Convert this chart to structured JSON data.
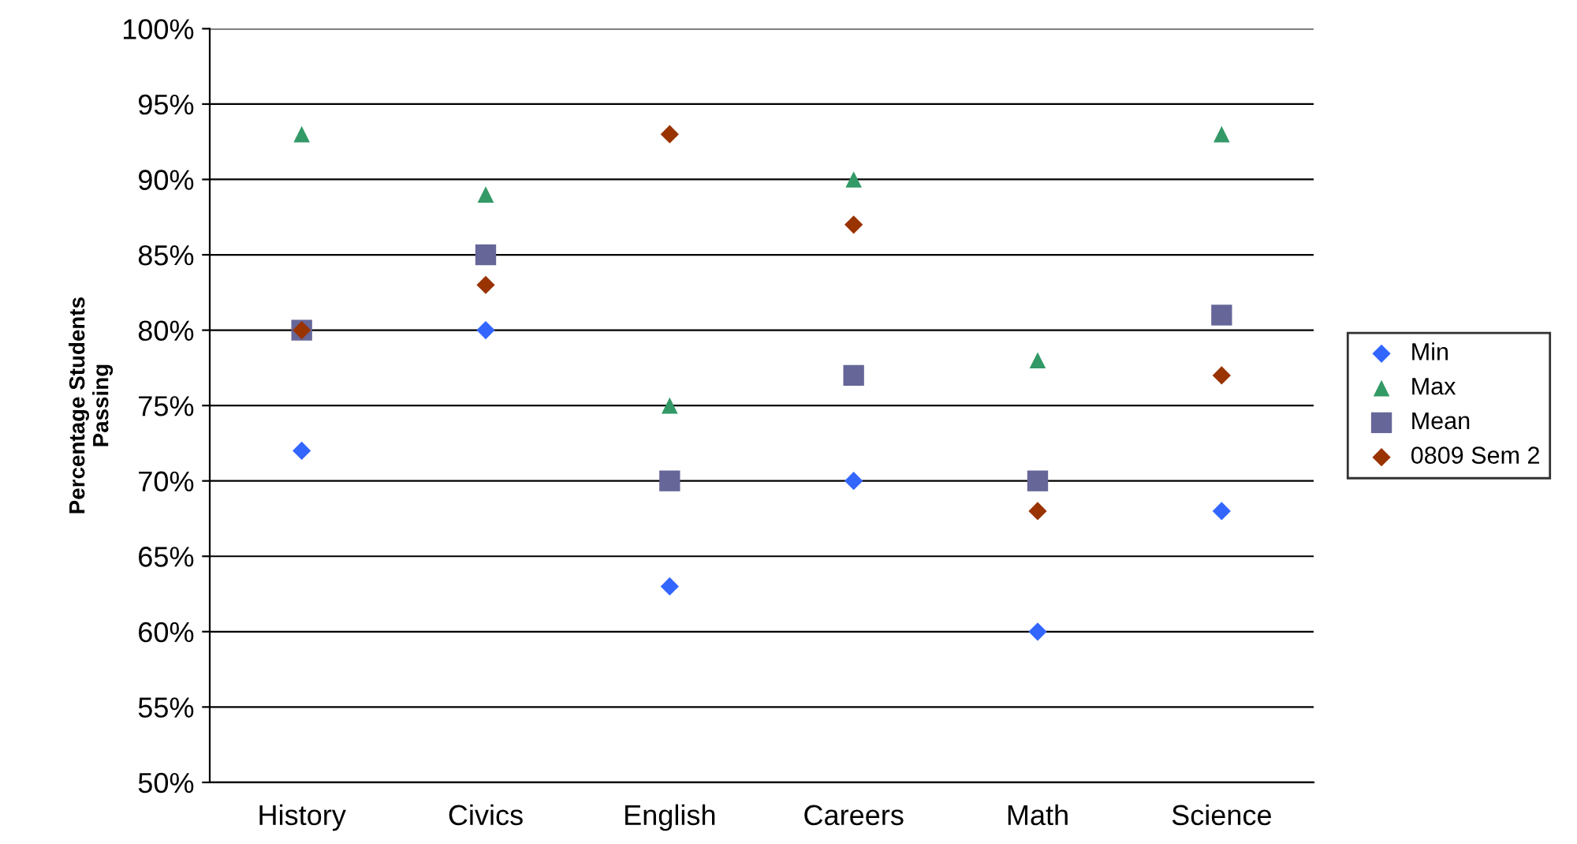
{
  "chart_data": {
    "type": "scatter",
    "ylabel": "Percentage Students\nPassing",
    "categories": [
      "History",
      "Civics",
      "English",
      "Careers",
      "Math",
      "Science"
    ],
    "series": [
      {
        "name": "Min",
        "color": "#3366ff",
        "marker": "diamond",
        "values": [
          72,
          80,
          63,
          70,
          60,
          68
        ]
      },
      {
        "name": "Max",
        "color": "#339966",
        "marker": "triangle",
        "values": [
          93,
          89,
          75,
          90,
          78,
          93
        ]
      },
      {
        "name": "Mean",
        "color": "#666699",
        "marker": "square",
        "values": [
          80,
          85,
          70,
          77,
          70,
          81
        ]
      },
      {
        "name": "0809 Sem 2",
        "color": "#993300",
        "marker": "diamond",
        "values": [
          80,
          83,
          93,
          87,
          68,
          77
        ]
      }
    ],
    "ylim": [
      50,
      100
    ],
    "yticks": [
      {
        "value": 50,
        "label": "50%"
      },
      {
        "value": 55,
        "label": "55%"
      },
      {
        "value": 60,
        "label": "60%"
      },
      {
        "value": 65,
        "label": "65%"
      },
      {
        "value": 70,
        "label": "70%"
      },
      {
        "value": 75,
        "label": "75%"
      },
      {
        "value": 80,
        "label": "80%"
      },
      {
        "value": 85,
        "label": "85%"
      },
      {
        "value": 90,
        "label": "90%"
      },
      {
        "value": 95,
        "label": "95%"
      },
      {
        "value": 100,
        "label": "100%"
      }
    ],
    "grid": "y",
    "legend": "right"
  }
}
